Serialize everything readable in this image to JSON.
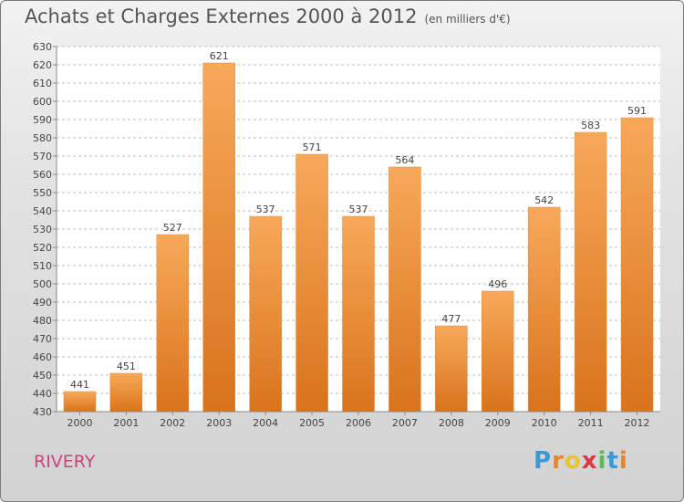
{
  "header": {
    "title": "Achats et Charges Externes 2000 à 2012",
    "unit": "(en milliers d'€)"
  },
  "footer": {
    "commune": "RIVERY",
    "logo_letters": [
      "P",
      "r",
      "o",
      "x",
      "i",
      "t",
      "i"
    ],
    "logo_colors": [
      "#3a9ad9",
      "#e8852a",
      "#e8c62a",
      "#d93a3a",
      "#5cb85c",
      "#3a9ad9",
      "#e8852a"
    ]
  },
  "colors": {
    "bar_light": "#f7a95a",
    "bar_dark": "#d9731c",
    "grid": "#bdbdbd",
    "text": "#444444"
  },
  "chart_data": {
    "type": "bar",
    "categories": [
      "2000",
      "2001",
      "2002",
      "2003",
      "2004",
      "2005",
      "2006",
      "2007",
      "2008",
      "2009",
      "2010",
      "2011",
      "2012"
    ],
    "values": [
      441,
      451,
      527,
      621,
      537,
      571,
      537,
      564,
      477,
      496,
      542,
      583,
      591
    ],
    "value_labels": [
      "441",
      "451",
      "527",
      "621",
      "537",
      "571",
      "537",
      "564",
      "477",
      "496",
      "542",
      "583",
      "591"
    ],
    "yticks": [
      "430",
      "440",
      "450",
      "460",
      "470",
      "480",
      "490",
      "500",
      "510",
      "520",
      "530",
      "540",
      "550",
      "560",
      "570",
      "580",
      "590",
      "600",
      "610",
      "620",
      "630"
    ],
    "ylim": [
      430,
      630
    ],
    "grid": true,
    "title": "Achats et Charges Externes 2000 à 2012",
    "xlabel": "",
    "ylabel": ""
  }
}
